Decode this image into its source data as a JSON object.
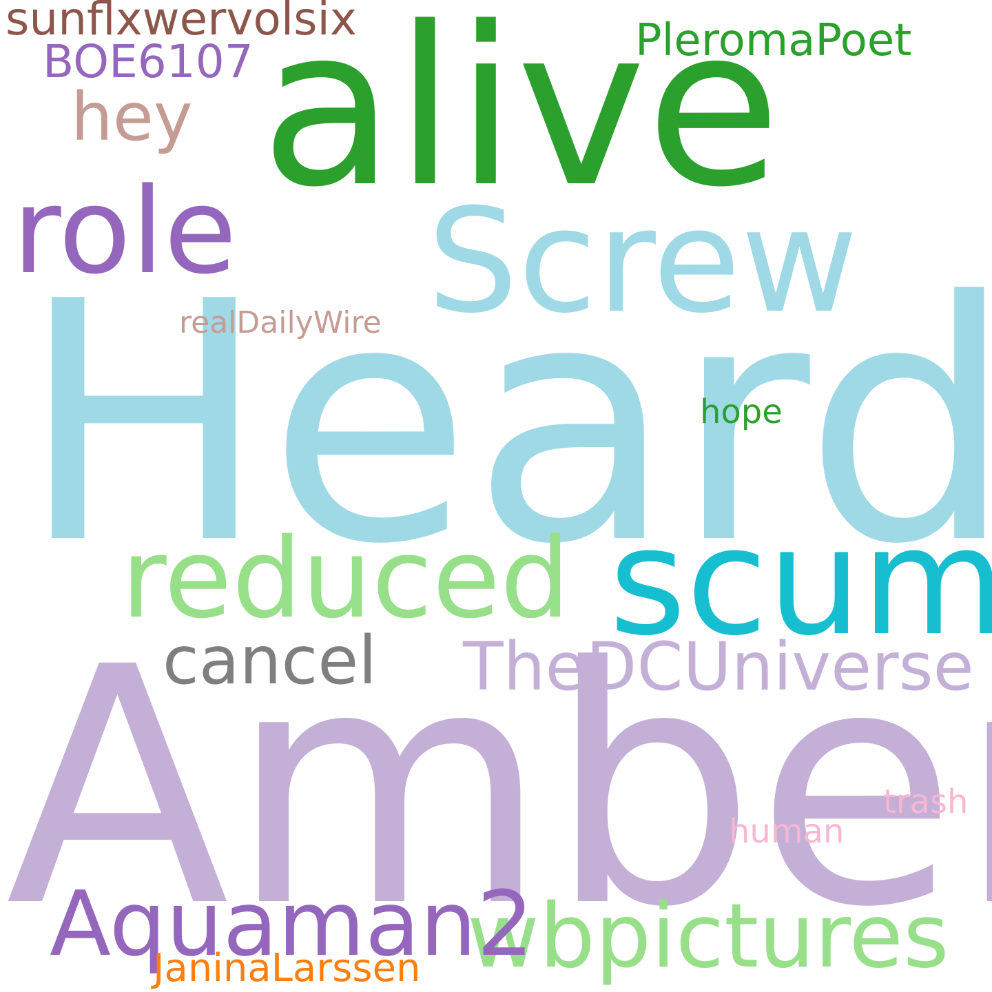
{
  "words": [
    {
      "id": "heard",
      "text": "Heard",
      "color": "#9fd9e5"
    },
    {
      "id": "amber",
      "text": "Amber",
      "color": "#c4b0d6"
    },
    {
      "id": "alive",
      "text": "alive",
      "color": "#2ca02c"
    },
    {
      "id": "screw",
      "text": "Screw",
      "color": "#9fd9e5"
    },
    {
      "id": "scum",
      "text": "scum",
      "color": "#17becf"
    },
    {
      "id": "role",
      "text": "role",
      "color": "#9467bd"
    },
    {
      "id": "reduced",
      "text": "reduced",
      "color": "#98df8a"
    },
    {
      "id": "wbpictures",
      "text": "wbpictures",
      "color": "#98df8a"
    },
    {
      "id": "aquaman2",
      "text": "Aquaman2",
      "color": "#9467bd"
    },
    {
      "id": "thedcuniverse",
      "text": "TheDCUniverse",
      "color": "#c4b0d6"
    },
    {
      "id": "cancel",
      "text": "cancel",
      "color": "#7f7f7f"
    },
    {
      "id": "hey",
      "text": "hey",
      "color": "#c49c94"
    },
    {
      "id": "sunflxwervolsix",
      "text": "sunflxwervolsix",
      "color": "#8c564b"
    },
    {
      "id": "pleromapoet",
      "text": "PleromaPoet",
      "color": "#2ca02c"
    },
    {
      "id": "boe6107",
      "text": "BOE6107",
      "color": "#9467bd"
    },
    {
      "id": "realdailywire",
      "text": "realDailyWire",
      "color": "#c49c94"
    },
    {
      "id": "hope",
      "text": "hope",
      "color": "#2ca02c"
    },
    {
      "id": "trash",
      "text": "trash",
      "color": "#f7b6d2"
    },
    {
      "id": "human",
      "text": "human",
      "color": "#f7b6d2"
    },
    {
      "id": "janinalarssen",
      "text": "JaninaLarssen",
      "color": "#ff7f0e"
    }
  ]
}
